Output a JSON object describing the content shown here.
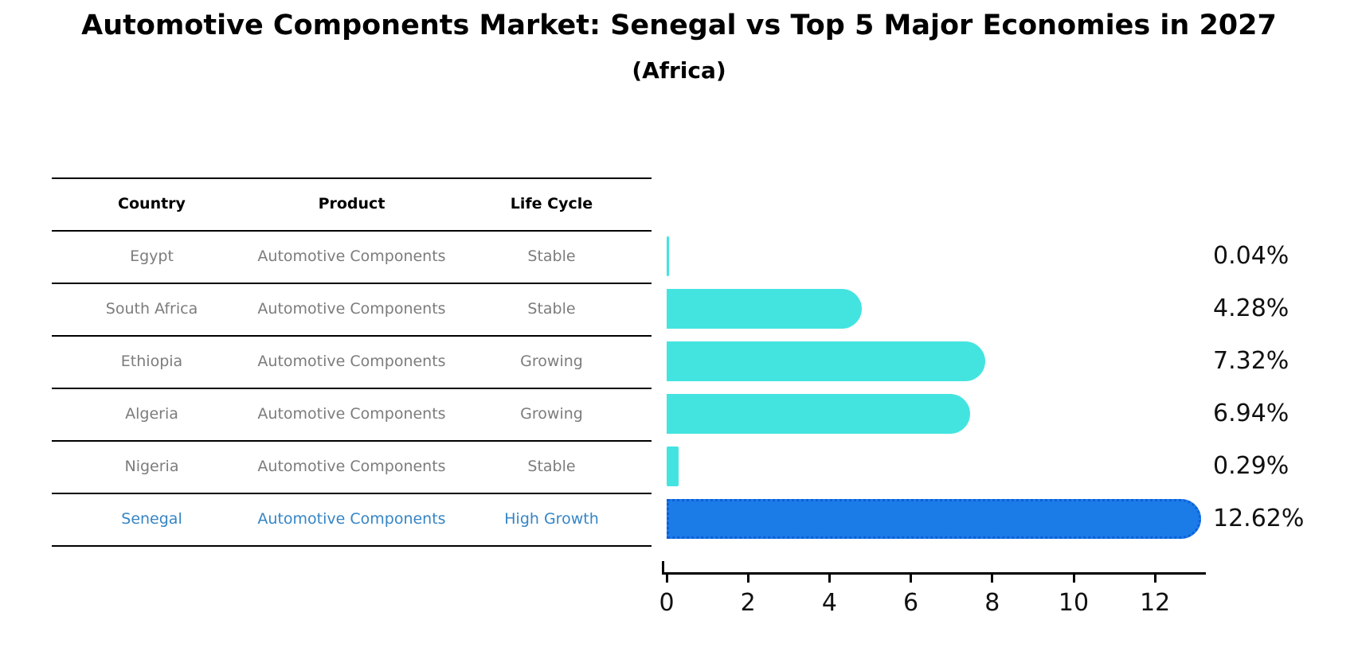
{
  "title": "Automotive Components Market: Senegal vs Top 5 Major Economies in 2027",
  "subtitle": "(Africa)",
  "table": {
    "columns": [
      "Country",
      "Product",
      "Life Cycle"
    ],
    "rows": [
      {
        "country": "Egypt",
        "product": "Automotive Components",
        "life_cycle": "Stable",
        "highlight": false
      },
      {
        "country": "South Africa",
        "product": "Automotive Components",
        "life_cycle": "Stable",
        "highlight": false
      },
      {
        "country": "Ethiopia",
        "product": "Automotive Components",
        "life_cycle": "Growing",
        "highlight": false
      },
      {
        "country": "Algeria",
        "product": "Automotive Components",
        "life_cycle": "Growing",
        "highlight": false
      },
      {
        "country": "Nigeria",
        "product": "Automotive Components",
        "life_cycle": "Stable",
        "highlight": false
      },
      {
        "country": "Senegal",
        "product": "Automotive Components",
        "life_cycle": "High Growth",
        "highlight": true
      }
    ]
  },
  "chart_data": {
    "type": "bar",
    "orientation": "horizontal",
    "title": "Automotive Components Market: Senegal vs Top 5 Major Economies in 2027 (Africa)",
    "categories": [
      "Egypt",
      "South Africa",
      "Ethiopia",
      "Algeria",
      "Nigeria",
      "Senegal"
    ],
    "values": [
      0.04,
      4.28,
      7.32,
      6.94,
      0.29,
      12.62
    ],
    "value_labels": [
      "0.04%",
      "4.28%",
      "7.32%",
      "6.94%",
      "0.29%",
      "12.62%"
    ],
    "unit": "percent",
    "xticks": [
      0,
      2,
      4,
      6,
      8,
      10,
      12
    ],
    "xlim": [
      0,
      13.3
    ],
    "grid": false,
    "legend": "none",
    "highlight_index": 5,
    "bar_color": "#43e4e0",
    "highlight_color": "#1b7ce8",
    "highlight_border_color": "#0d5fd9"
  },
  "colors": {
    "background": "#ffffff",
    "table_line": "#000000",
    "row_text": "#7c7c7c",
    "highlight_text": "#3585c5",
    "label_text": "#111111"
  }
}
